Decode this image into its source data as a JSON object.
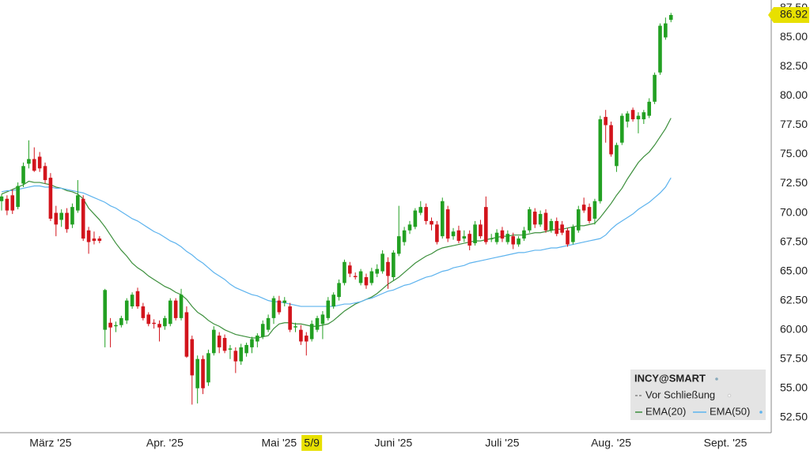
{
  "chart_data": {
    "type": "candlestick",
    "ylim": [
      51.2,
      88.2
    ],
    "yticks": [
      {
        "value": 52.5,
        "label": "52.50"
      },
      {
        "value": 55,
        "label": "55.00"
      },
      {
        "value": 57.5,
        "label": "57.50"
      },
      {
        "value": 60,
        "label": "60.00"
      },
      {
        "value": 62.5,
        "label": "62.50"
      },
      {
        "value": 65,
        "label": "65.00"
      },
      {
        "value": 67.5,
        "label": "67.50"
      },
      {
        "value": 70,
        "label": "70.00"
      },
      {
        "value": 72.5,
        "label": "72.50"
      },
      {
        "value": 75,
        "label": "75.00"
      },
      {
        "value": 77.5,
        "label": "77.50"
      },
      {
        "value": 80,
        "label": "80.00"
      },
      {
        "value": 82.5,
        "label": "82.50"
      },
      {
        "value": 85,
        "label": "85.00"
      },
      {
        "value": 87.5,
        "label": "87.50"
      }
    ],
    "grid": true,
    "highlight_category": "5/9",
    "categories": [
      null,
      null,
      null,
      null,
      null,
      null,
      null,
      null,
      null,
      "März '25",
      null,
      null,
      null,
      null,
      null,
      null,
      null,
      null,
      null,
      null,
      null,
      null,
      null,
      null,
      null,
      null,
      null,
      null,
      null,
      null,
      "Apr. '25",
      null,
      null,
      null,
      null,
      null,
      null,
      null,
      null,
      null,
      null,
      null,
      null,
      null,
      null,
      null,
      null,
      null,
      null,
      null,
      null,
      "Mai '25",
      null,
      null,
      null,
      null,
      null,
      "5/9",
      null,
      null,
      null,
      null,
      null,
      null,
      null,
      null,
      null,
      null,
      null,
      null,
      null,
      null,
      "Juni '25",
      null,
      null,
      null,
      null,
      null,
      null,
      null,
      null,
      null,
      null,
      null,
      null,
      null,
      null,
      null,
      null,
      null,
      null,
      null,
      "Juli '25",
      null,
      null,
      null,
      null,
      null,
      null,
      null,
      null,
      null,
      null,
      null,
      null,
      null,
      null,
      null,
      null,
      null,
      null,
      null,
      "Aug. '25",
      null,
      null,
      null,
      null,
      null,
      null,
      null,
      null,
      null,
      null,
      null,
      null,
      null,
      null,
      null,
      null,
      null,
      null,
      null,
      null,
      "Sept. '25",
      null,
      null,
      null,
      null,
      null,
      null,
      null,
      null
    ],
    "ohlc": {
      "name": "INCY@SMART",
      "up_color": "#22a022",
      "down_color": "#d2141c",
      "open": [
        71.0,
        71.2,
        71.5,
        70.5,
        72.5,
        74.2,
        74.6,
        74.8,
        74.0,
        73.0,
        70.0,
        69.4,
        70.0,
        69.0,
        70.2,
        71.2,
        68.5,
        67.8,
        67.8,
        60.0,
        60.6,
        60.3,
        60.4,
        60.8,
        62.0,
        63.3,
        62.0,
        61.3,
        60.6,
        60.5,
        60.3,
        60.5,
        62.5,
        61.0,
        61.5,
        59.2,
        55.0,
        57.5,
        55.5,
        58.0,
        59.5,
        59.3,
        58.3,
        58.2,
        57.3,
        58.0,
        58.5,
        59.0,
        59.4,
        60.0,
        61.0,
        62.5,
        62.3,
        62.0,
        60.2,
        60.0,
        59.5,
        59.2,
        60.0,
        60.5,
        61.0,
        62.0,
        62.8,
        64.0,
        65.5,
        64.6,
        64.0,
        64.5,
        64.0,
        64.8,
        65.0,
        65.8,
        64.5,
        66.5,
        67.5,
        68.5,
        68.8,
        70.0,
        70.5,
        69.3,
        69.0,
        68.0,
        70.3,
        68.0,
        68.5,
        67.8,
        68.2,
        67.4,
        69.0,
        70.5,
        67.8,
        67.5,
        68.5,
        67.5,
        68.0,
        67.3,
        67.8,
        68.5,
        70.1,
        69.0,
        70.0,
        68.5,
        69.3,
        69.0,
        68.5,
        67.5,
        68.5,
        70.7,
        70.5,
        69.5,
        71.0,
        78.2,
        77.5,
        74.0,
        76.0,
        77.8,
        78.8,
        78.0,
        78.0,
        78.3,
        79.5,
        82.0,
        85.0,
        86.5,
        null,
        null,
        null,
        null,
        null,
        null,
        null,
        null,
        null,
        null,
        null,
        null,
        null,
        null,
        null,
        null,
        null,
        null
      ],
      "high": [
        71.6,
        71.5,
        72.0,
        72.6,
        74.3,
        76.2,
        75.6,
        75.2,
        74.3,
        73.4,
        70.6,
        70.3,
        70.4,
        70.8,
        72.8,
        71.5,
        68.8,
        68.4,
        68.0,
        63.5,
        61.0,
        60.7,
        61.2,
        62.7,
        63.2,
        63.6,
        62.3,
        61.5,
        60.9,
        60.8,
        61.2,
        62.7,
        62.7,
        63.5,
        62.0,
        59.5,
        57.8,
        57.8,
        58.3,
        60.3,
        59.8,
        59.6,
        58.7,
        58.5,
        58.8,
        58.9,
        59.4,
        59.7,
        60.8,
        61.3,
        62.9,
        62.9,
        62.8,
        62.3,
        60.6,
        60.4,
        59.8,
        60.8,
        61.2,
        61.6,
        62.8,
        63.2,
        64.3,
        66.0,
        65.8,
        64.9,
        65.2,
        64.8,
        65.3,
        65.6,
        66.8,
        66.2,
        66.8,
        70.6,
        68.8,
        69.3,
        70.4,
        71.0,
        70.8,
        69.6,
        69.3,
        71.3,
        70.6,
        68.7,
        68.9,
        68.5,
        68.5,
        69.3,
        69.4,
        71.4,
        68.2,
        68.6,
        68.8,
        68.5,
        68.3,
        68.0,
        68.8,
        70.5,
        70.4,
        70.2,
        70.3,
        69.5,
        69.6,
        69.3,
        68.7,
        69.0,
        70.6,
        71.3,
        70.8,
        71.2,
        78.3,
        78.8,
        77.8,
        76.0,
        78.5,
        78.7,
        79.0,
        78.6,
        78.8,
        79.8,
        82.0,
        86.2,
        86.7,
        87.1,
        null,
        null,
        null,
        null,
        null,
        null,
        null,
        null,
        null,
        null,
        null,
        null,
        null,
        null,
        null,
        null,
        null,
        null
      ],
      "low": [
        70.2,
        69.8,
        69.9,
        70.3,
        72.2,
        73.8,
        73.5,
        73.5,
        72.5,
        69.3,
        68.0,
        68.8,
        68.3,
        68.7,
        70.0,
        67.6,
        66.5,
        67.3,
        67.4,
        58.5,
        58.5,
        59.8,
        60.2,
        60.5,
        61.8,
        61.8,
        60.8,
        60.3,
        60.1,
        59.0,
        60.0,
        60.3,
        60.8,
        60.8,
        57.6,
        53.6,
        53.7,
        54.5,
        55.2,
        57.8,
        58.0,
        58.0,
        57.5,
        56.3,
        57.0,
        57.7,
        58.0,
        58.5,
        59.2,
        59.8,
        60.5,
        61.3,
        62.0,
        59.8,
        59.8,
        58.7,
        57.8,
        59.0,
        59.8,
        59.2,
        60.8,
        61.8,
        62.5,
        63.8,
        64.5,
        64.3,
        63.8,
        63.5,
        63.8,
        64.5,
        64.8,
        63.5,
        64.2,
        66.3,
        67.2,
        68.2,
        68.6,
        69.8,
        69.0,
        68.5,
        67.3,
        67.8,
        67.5,
        67.7,
        67.4,
        67.5,
        66.8,
        67.2,
        67.8,
        67.3,
        67.5,
        67.3,
        67.5,
        67.3,
        66.9,
        67.1,
        67.6,
        68.3,
        68.7,
        68.8,
        68.3,
        68.3,
        68.0,
        68.1,
        67.1,
        67.3,
        68.3,
        70.0,
        69.1,
        69.0,
        70.8,
        76.0,
        74.8,
        73.5,
        75.8,
        77.3,
        77.8,
        76.8,
        77.6,
        78.1,
        79.3,
        81.8,
        84.8,
        86.3,
        null,
        null,
        null,
        null,
        null,
        null,
        null,
        null,
        null,
        null,
        null,
        null,
        null,
        null,
        null,
        null,
        null,
        null
      ],
      "close": [
        71.4,
        70.2,
        70.2,
        72.3,
        74.0,
        74.6,
        73.6,
        73.8,
        72.8,
        69.5,
        69.0,
        70.0,
        68.6,
        70.5,
        71.5,
        67.8,
        67.5,
        67.6,
        67.6,
        63.4,
        60.2,
        60.4,
        61.0,
        62.5,
        63.0,
        62.0,
        61.0,
        60.5,
        60.5,
        60.2,
        61.0,
        62.5,
        61.0,
        63.0,
        57.7,
        56.1,
        57.5,
        55.0,
        58.0,
        60.0,
        58.5,
        58.2,
        58.4,
        57.3,
        58.5,
        58.7,
        59.2,
        59.5,
        60.5,
        61.0,
        62.7,
        61.5,
        62.5,
        60.0,
        60.3,
        59.0,
        59.0,
        60.5,
        61.0,
        61.3,
        62.5,
        63.0,
        64.0,
        65.8,
        64.8,
        64.5,
        65.0,
        63.8,
        65.0,
        65.2,
        66.5,
        64.6,
        66.6,
        68.0,
        68.5,
        69.0,
        70.2,
        70.5,
        69.3,
        69.0,
        67.5,
        71.0,
        67.8,
        68.4,
        67.6,
        68.0,
        67.2,
        69.0,
        68.0,
        67.5,
        67.8,
        68.3,
        67.8,
        68.2,
        67.3,
        67.8,
        68.5,
        70.3,
        69.0,
        69.9,
        68.5,
        69.3,
        68.2,
        68.3,
        67.3,
        68.8,
        70.3,
        70.2,
        69.3,
        71.0,
        78.0,
        77.5,
        75.0,
        75.8,
        78.3,
        78.5,
        78.0,
        78.3,
        78.6,
        79.5,
        81.8,
        86.0,
        86.2,
        86.92,
        null,
        null,
        null,
        null,
        null,
        null,
        null,
        null,
        null,
        null,
        null,
        null,
        null,
        null,
        null,
        null,
        null,
        null
      ]
    },
    "legend_items": [
      {
        "name": "Vor Schließung",
        "color": "#555555"
      }
    ],
    "series": [
      {
        "name": "EMA(20)",
        "color": "#3c8f3c",
        "values": [
          71.6,
          71.8,
          72.0,
          72.2,
          72.4,
          72.7,
          72.6,
          72.6,
          72.5,
          72.4,
          72.2,
          72.1,
          71.9,
          71.8,
          71.6,
          71.2,
          70.4,
          69.9,
          69.4,
          68.8,
          68.1,
          67.4,
          66.8,
          66.3,
          65.7,
          65.3,
          65.0,
          64.6,
          64.3,
          64.0,
          63.7,
          63.5,
          63.2,
          63.0,
          62.6,
          62.0,
          61.5,
          61.2,
          60.8,
          60.5,
          60.3,
          60.0,
          59.8,
          59.6,
          59.5,
          59.4,
          59.3,
          59.3,
          59.4,
          59.5,
          60.1,
          60.5,
          60.6,
          60.6,
          60.5,
          60.5,
          60.4,
          60.3,
          60.3,
          60.4,
          60.5,
          60.8,
          61.2,
          61.6,
          61.9,
          62.2,
          62.4,
          62.6,
          62.8,
          63.1,
          63.5,
          63.9,
          64.2,
          64.5,
          64.9,
          65.3,
          65.7,
          66.0,
          66.3,
          66.5,
          66.8,
          67.0,
          67.1,
          67.2,
          67.3,
          67.4,
          67.5,
          67.6,
          67.6,
          67.7,
          67.8,
          67.9,
          68.0,
          68.0,
          68.1,
          68.1,
          68.1,
          68.2,
          68.3,
          68.3,
          68.4,
          68.5,
          68.6,
          68.6,
          68.7,
          68.8,
          68.9,
          68.9,
          69.0,
          69.1,
          69.6,
          70.2,
          70.8,
          71.5,
          72.1,
          72.9,
          73.6,
          74.3,
          74.8,
          75.2,
          75.8,
          76.5,
          77.2,
          78.1,
          null,
          null,
          null,
          null,
          null,
          null,
          null,
          null,
          null,
          null,
          null,
          null,
          null,
          null,
          null,
          null,
          null,
          null
        ]
      },
      {
        "name": "EMA(50)",
        "color": "#5db3ee",
        "values": [
          71.8,
          71.9,
          71.9,
          72.0,
          72.1,
          72.2,
          72.3,
          72.3,
          72.2,
          72.2,
          72.1,
          72.1,
          72.0,
          71.9,
          71.8,
          71.7,
          71.5,
          71.3,
          71.1,
          70.9,
          70.6,
          70.4,
          70.1,
          69.8,
          69.5,
          69.3,
          69.0,
          68.7,
          68.4,
          68.2,
          67.9,
          67.6,
          67.4,
          67.1,
          66.7,
          66.4,
          66.0,
          65.7,
          65.3,
          64.9,
          64.6,
          64.3,
          63.9,
          63.6,
          63.4,
          63.2,
          63.0,
          62.9,
          62.7,
          62.5,
          62.4,
          62.4,
          62.3,
          62.2,
          62.1,
          62.0,
          62.0,
          62.0,
          62.0,
          62.0,
          62.0,
          62.0,
          62.1,
          62.2,
          62.2,
          62.3,
          62.4,
          62.6,
          62.7,
          62.9,
          63.1,
          63.3,
          63.4,
          63.6,
          63.8,
          63.9,
          64.1,
          64.3,
          64.5,
          64.6,
          64.8,
          65.0,
          65.1,
          65.3,
          65.4,
          65.5,
          65.7,
          65.8,
          65.9,
          66.0,
          66.1,
          66.2,
          66.3,
          66.4,
          66.5,
          66.6,
          66.6,
          66.7,
          66.8,
          66.8,
          66.9,
          67.0,
          67.0,
          67.1,
          67.2,
          67.3,
          67.4,
          67.5,
          67.6,
          67.7,
          67.8,
          68.1,
          68.6,
          69.0,
          69.3,
          69.6,
          69.9,
          70.3,
          70.6,
          70.9,
          71.3,
          71.7,
          72.2,
          73.0,
          null,
          null,
          null,
          null,
          null,
          null,
          null,
          null,
          null,
          null,
          null,
          null,
          null,
          null,
          null,
          null,
          null,
          null
        ]
      }
    ]
  }
}
